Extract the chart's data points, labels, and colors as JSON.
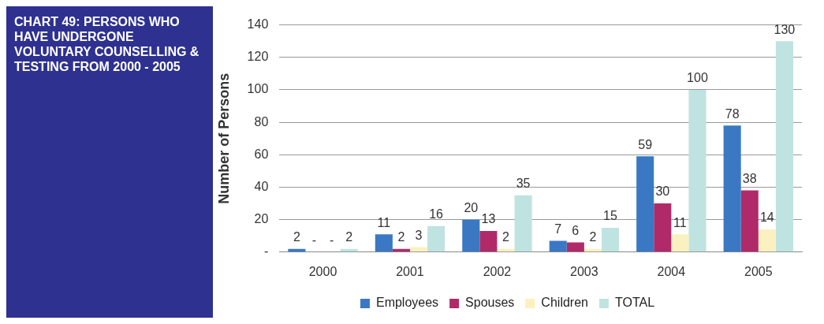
{
  "chart_data": {
    "type": "bar",
    "title": "CHART  49: PERSONS WHO HAVE UNDERGONE VOLUNTARY COUNSELLING & TESTING FROM 2000 - 2005",
    "ylabel": "Number of Persons",
    "categories": [
      "2000",
      "2001",
      "2002",
      "2003",
      "2004",
      "2005"
    ],
    "series": [
      {
        "name": "Employees",
        "color": "#3a78c4",
        "values": [
          2,
          11,
          20,
          7,
          59,
          78
        ],
        "value_labels": [
          "2",
          "11",
          "20",
          "7",
          "59",
          "78"
        ]
      },
      {
        "name": "Spouses",
        "color": "#b02a6a",
        "values": [
          0,
          2,
          13,
          6,
          30,
          38
        ],
        "value_labels": [
          "-",
          "2",
          "13",
          "6",
          "30",
          "38"
        ]
      },
      {
        "name": "Children",
        "color": "#fbf0c0",
        "values": [
          0,
          3,
          2,
          2,
          11,
          14
        ],
        "value_labels": [
          "-",
          "3",
          "2",
          "2",
          "11",
          "14"
        ]
      },
      {
        "name": "TOTAL",
        "color": "#bfe3e0",
        "values": [
          2,
          16,
          35,
          15,
          100,
          130
        ],
        "value_labels": [
          "2",
          "16",
          "35",
          "15",
          "100",
          "130"
        ]
      }
    ],
    "ylim": [
      0,
      140
    ],
    "yticks": [
      {
        "value": 0,
        "label": "-"
      },
      20,
      40,
      60,
      80,
      100,
      120,
      140
    ],
    "grid": "y",
    "legend": "bottom"
  }
}
